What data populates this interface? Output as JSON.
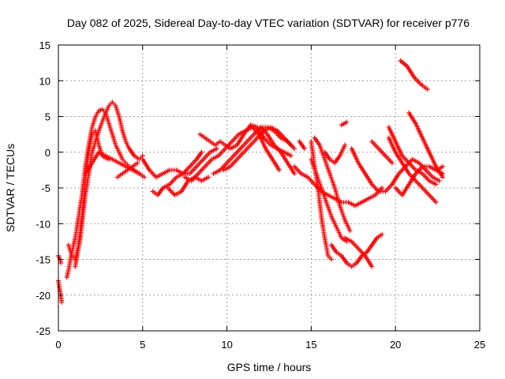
{
  "chart_data": {
    "type": "scatter",
    "title": "Day 082 of 2025, Sidereal Day-to-day VTEC variation (SDTVAR) for receiver p776",
    "xlabel": "GPS time / hours",
    "ylabel": "SDTVAR / TECUs",
    "xlim": [
      0,
      25
    ],
    "ylim": [
      -25,
      15
    ],
    "xticks": [
      0,
      5,
      10,
      15,
      20,
      25
    ],
    "yticks": [
      -25,
      -20,
      -15,
      -10,
      -5,
      0,
      5,
      10,
      15
    ],
    "grid": true,
    "marker": "+",
    "color": "#ff0000",
    "series": [
      {
        "name": "arc-a",
        "x": [
          0.0,
          0.1,
          0.2
        ],
        "y": [
          -18.0,
          -19.5,
          -21.0
        ]
      },
      {
        "name": "arc-b",
        "x": [
          0.0,
          0.1,
          0.15
        ],
        "y": [
          -14.5,
          -15.0,
          -15.5
        ]
      },
      {
        "name": "arc-c",
        "x": [
          0.5,
          0.6,
          0.8,
          1.0,
          1.2,
          1.4,
          1.6,
          1.8,
          2.0,
          2.2,
          2.4,
          2.6,
          2.8,
          3.0,
          3.2,
          3.4,
          3.6,
          3.8,
          4.0,
          4.2,
          4.5,
          4.8
        ],
        "y": [
          -17.5,
          -16.5,
          -14.0,
          -12.0,
          -9.0,
          -6.0,
          -2.0,
          1.0,
          3.5,
          5.0,
          5.8,
          6.0,
          5.5,
          4.0,
          2.5,
          1.0,
          0.0,
          -1.0,
          -1.5,
          -2.0,
          -2.5,
          -3.0
        ]
      },
      {
        "name": "arc-d",
        "x": [
          0.6,
          0.8,
          1.0,
          1.2,
          1.4,
          1.6,
          1.8,
          2.0,
          2.2,
          2.4,
          2.6,
          2.8,
          3.0
        ],
        "y": [
          -13.0,
          -14.5,
          -15.0,
          -13.0,
          -9.0,
          -4.0,
          0.0,
          2.5,
          3.0,
          1.0,
          -0.5,
          -0.8,
          -1.0
        ]
      },
      {
        "name": "arc-e",
        "x": [
          1.0,
          1.3,
          1.6,
          2.0,
          2.4,
          2.8,
          3.0,
          3.2,
          3.4,
          3.6,
          3.8,
          4.0,
          4.2,
          4.5,
          4.8,
          5.0
        ],
        "y": [
          -16.0,
          -12.0,
          -6.0,
          0.0,
          3.0,
          5.5,
          6.5,
          7.0,
          6.5,
          5.0,
          3.0,
          1.5,
          0.5,
          -0.5,
          -1.0,
          -0.5
        ]
      },
      {
        "name": "arc-f",
        "x": [
          1.6,
          2.0,
          2.4,
          2.8,
          3.2,
          3.6,
          4.0,
          4.4,
          4.8,
          5.1
        ],
        "y": [
          -3.0,
          -1.5,
          0.0,
          -0.5,
          -1.0,
          -1.5,
          -2.0,
          -2.5,
          -3.0,
          -3.5
        ]
      },
      {
        "name": "arc-g",
        "x": [
          3.5,
          3.8,
          4.1,
          4.4,
          4.7
        ],
        "y": [
          -3.5,
          -3.0,
          -2.5,
          -2.0,
          -1.5
        ]
      },
      {
        "name": "arc-h",
        "x": [
          5.0,
          5.4,
          5.8,
          6.2,
          6.6,
          7.0,
          7.4,
          7.8,
          8.2,
          8.6,
          9.0,
          9.4
        ],
        "y": [
          -1.0,
          -2.5,
          -3.5,
          -3.0,
          -2.5,
          -2.5,
          -3.0,
          -3.0,
          -2.0,
          -1.0,
          0.0,
          0.5
        ]
      },
      {
        "name": "arc-i",
        "x": [
          5.6,
          5.9,
          6.2,
          6.6,
          7.0,
          7.4,
          7.8,
          8.2,
          8.5
        ],
        "y": [
          -5.5,
          -6.0,
          -5.0,
          -4.5,
          -3.5,
          -3.0,
          -2.0,
          -1.0,
          0.0
        ]
      },
      {
        "name": "arc-j",
        "x": [
          6.5,
          6.9,
          7.3,
          7.7,
          8.1,
          8.5,
          8.9
        ],
        "y": [
          -5.0,
          -6.0,
          -5.5,
          -4.0,
          -3.5,
          -4.0,
          -3.5
        ]
      },
      {
        "name": "arc-k",
        "x": [
          7.5,
          7.9,
          8.3,
          8.7,
          9.1,
          9.5,
          9.9,
          10.3,
          10.7,
          11.1,
          11.5,
          11.9,
          12.3,
          12.7,
          13.1
        ],
        "y": [
          -3.5,
          -4.0,
          -3.0,
          -2.0,
          -1.0,
          -0.5,
          0.5,
          1.5,
          2.5,
          3.0,
          3.5,
          2.5,
          0.5,
          -1.0,
          -2.5
        ]
      },
      {
        "name": "arc-l",
        "x": [
          8.4,
          8.7,
          9.0,
          9.3,
          9.6,
          9.9,
          10.2,
          10.6,
          11.0,
          11.4,
          11.8,
          12.2,
          12.6,
          13.0,
          13.4,
          13.8
        ],
        "y": [
          2.5,
          2.0,
          1.5,
          1.0,
          1.5,
          1.0,
          0.5,
          1.0,
          2.5,
          3.8,
          3.5,
          2.0,
          1.0,
          0.5,
          0.0,
          -0.5
        ]
      },
      {
        "name": "arc-m",
        "x": [
          9.2,
          9.6,
          10.0,
          10.4,
          10.8,
          11.2,
          11.6,
          12.0,
          12.4,
          12.8,
          13.2,
          13.6,
          14.0
        ],
        "y": [
          -3.0,
          -2.5,
          -1.5,
          -0.5,
          0.5,
          1.5,
          2.5,
          3.5,
          3.5,
          3.0,
          2.0,
          1.5,
          0.5
        ]
      },
      {
        "name": "arc-n",
        "x": [
          9.8,
          10.2,
          10.6,
          11.0,
          11.4,
          11.8,
          12.2,
          12.6,
          13.0,
          13.4,
          13.8
        ],
        "y": [
          -2.5,
          -2.0,
          -1.0,
          0.0,
          1.0,
          2.0,
          3.0,
          3.5,
          3.0,
          2.0,
          1.0
        ]
      },
      {
        "name": "arc-o",
        "x": [
          12.0,
          12.4,
          12.8,
          13.2,
          13.6,
          14.0
        ],
        "y": [
          3.5,
          2.5,
          1.0,
          0.0,
          -1.5,
          -3.0
        ]
      },
      {
        "name": "arc-p",
        "x": [
          14.3,
          14.6
        ],
        "y": [
          1.5,
          0.5
        ]
      },
      {
        "name": "arc-q",
        "x": [
          14.0,
          14.4,
          14.8,
          15.2,
          15.6,
          16.0,
          16.4,
          16.8,
          17.2,
          17.6,
          18.0,
          18.4,
          18.8,
          19.2
        ],
        "y": [
          -2.0,
          -3.0,
          -3.5,
          -4.5,
          -5.5,
          -6.0,
          -6.5,
          -7.0,
          -7.0,
          -7.5,
          -7.0,
          -6.5,
          -6.0,
          -5.0
        ]
      },
      {
        "name": "arc-r",
        "x": [
          15.0,
          15.2,
          15.4,
          15.6,
          15.8,
          16.0,
          16.2
        ],
        "y": [
          1.5,
          -2.0,
          -5.0,
          -9.0,
          -12.0,
          -14.5,
          -15.0
        ]
      },
      {
        "name": "arc-s",
        "x": [
          15.0,
          15.3,
          15.6,
          15.9,
          16.2,
          16.5,
          16.8,
          17.1
        ],
        "y": [
          -1.0,
          -3.0,
          -5.0,
          -7.0,
          -9.0,
          -10.5,
          -12.0,
          -12.5
        ]
      },
      {
        "name": "arc-t",
        "x": [
          15.2,
          15.5,
          15.8,
          16.1,
          16.4,
          16.7,
          17.0,
          17.3
        ],
        "y": [
          2.0,
          1.0,
          -1.0,
          -3.0,
          -5.0,
          -7.5,
          -9.5,
          -11.0
        ]
      },
      {
        "name": "arc-u",
        "x": [
          16.2,
          16.5,
          16.8,
          17.1,
          17.4,
          17.7,
          18.0,
          18.3,
          18.6,
          18.9,
          19.2
        ],
        "y": [
          -13.0,
          -14.0,
          -14.5,
          -15.5,
          -16.0,
          -15.5,
          -14.5,
          -14.0,
          -13.0,
          -12.0,
          -11.5
        ]
      },
      {
        "name": "arc-v",
        "x": [
          17.0,
          17.4,
          17.8,
          18.2,
          18.6
        ],
        "y": [
          -12.0,
          -12.5,
          -13.5,
          -14.5,
          -16.0
        ]
      },
      {
        "name": "arc-w",
        "x": [
          15.8,
          16.1,
          16.4,
          16.7,
          17.0
        ],
        "y": [
          0.0,
          -1.0,
          -1.5,
          -0.5,
          1.0
        ]
      },
      {
        "name": "arc-x",
        "x": [
          16.8,
          17.1
        ],
        "y": [
          3.8,
          4.2
        ]
      },
      {
        "name": "arc-y",
        "x": [
          17.4,
          17.8,
          18.2,
          18.6,
          19.0,
          19.4,
          19.8,
          20.2,
          20.6,
          21.0,
          21.4,
          21.8,
          22.2,
          22.6
        ],
        "y": [
          0.5,
          -1.5,
          -3.0,
          -4.5,
          -5.5,
          -5.5,
          -4.5,
          -3.0,
          -2.0,
          -1.0,
          -1.5,
          -2.5,
          -3.5,
          -4.0
        ]
      },
      {
        "name": "arc-z",
        "x": [
          18.6,
          19.0,
          19.4,
          19.8
        ],
        "y": [
          1.5,
          0.5,
          -0.5,
          -1.5
        ]
      },
      {
        "name": "arc-aa",
        "x": [
          19.6,
          20.0,
          20.4,
          20.8,
          21.2,
          21.6,
          22.0,
          22.4
        ],
        "y": [
          3.5,
          1.5,
          -0.5,
          -1.5,
          -2.5,
          -3.0,
          -4.0,
          -4.5
        ]
      },
      {
        "name": "arc-ab",
        "x": [
          20.0,
          20.4,
          20.8,
          21.2,
          21.6,
          22.0,
          22.4,
          22.8
        ],
        "y": [
          -5.0,
          -6.0,
          -4.5,
          -3.0,
          -2.0,
          -2.0,
          -2.5,
          -3.0
        ]
      },
      {
        "name": "arc-ac",
        "x": [
          19.6,
          20.0,
          20.4,
          20.8,
          21.2,
          21.6,
          22.0,
          22.4
        ],
        "y": [
          2.0,
          0.0,
          -1.5,
          -3.0,
          -4.0,
          -5.0,
          -6.0,
          -7.0
        ]
      },
      {
        "name": "arc-ad",
        "x": [
          20.8,
          21.2,
          21.6,
          22.0,
          22.4,
          22.8
        ],
        "y": [
          5.5,
          4.0,
          2.0,
          0.0,
          -2.0,
          -3.5
        ]
      },
      {
        "name": "arc-ae",
        "x": [
          20.3,
          20.7,
          21.1,
          21.5,
          21.9
        ],
        "y": [
          12.8,
          12.0,
          10.5,
          9.5,
          8.8
        ]
      },
      {
        "name": "arc-af",
        "x": [
          22.5,
          22.8
        ],
        "y": [
          -2.5,
          -2.0
        ]
      }
    ]
  }
}
